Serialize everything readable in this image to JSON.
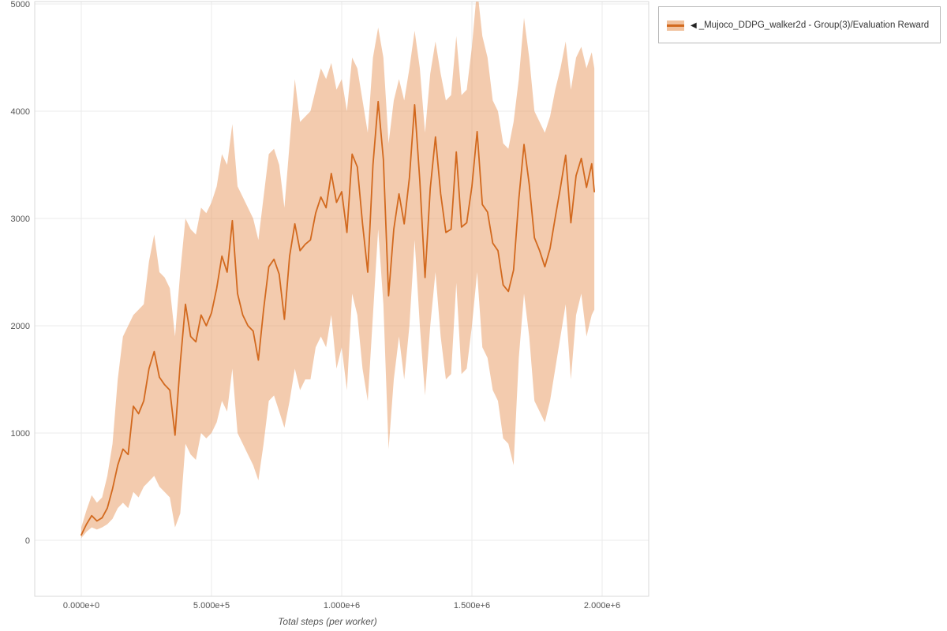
{
  "legend": {
    "arrow": "◀",
    "label": "_Mujoco_DDPG_walker2d - Group(3)/Evaluation Reward"
  },
  "chart_data": {
    "type": "line",
    "title": "",
    "xlabel": "Total steps (per worker)",
    "ylabel": "",
    "xlim": [
      0,
      2000000
    ],
    "ylim": [
      0,
      5000
    ],
    "grid": true,
    "legend_position": "top-right",
    "colors": {
      "line": "#d2691e",
      "band": "#e8975d",
      "band_light": "#f1c29e",
      "grid": "#ebebeb",
      "border": "#d9d9d9",
      "tick_text": "#555555"
    },
    "x_ticks": [
      {
        "value": 0,
        "label": "0.000e+0"
      },
      {
        "value": 500000,
        "label": "5.000e+5"
      },
      {
        "value": 1000000,
        "label": "1.000e+6"
      },
      {
        "value": 1500000,
        "label": "1.500e+6"
      },
      {
        "value": 2000000,
        "label": "2.000e+6"
      }
    ],
    "y_ticks": [
      0,
      1000,
      2000,
      3000,
      4000,
      5000
    ],
    "series": [
      {
        "name": "_Mujoco_DDPG_walker2d - Group(3)/Evaluation Reward",
        "x": [
          0,
          20000,
          40000,
          60000,
          80000,
          100000,
          120000,
          140000,
          160000,
          180000,
          200000,
          220000,
          240000,
          260000,
          280000,
          300000,
          320000,
          340000,
          360000,
          380000,
          400000,
          420000,
          440000,
          460000,
          480000,
          500000,
          520000,
          540000,
          560000,
          580000,
          600000,
          620000,
          640000,
          660000,
          680000,
          700000,
          720000,
          740000,
          760000,
          780000,
          800000,
          820000,
          840000,
          860000,
          880000,
          900000,
          920000,
          940000,
          960000,
          980000,
          1000000,
          1020000,
          1040000,
          1060000,
          1080000,
          1100000,
          1120000,
          1140000,
          1160000,
          1180000,
          1200000,
          1220000,
          1240000,
          1260000,
          1280000,
          1300000,
          1320000,
          1340000,
          1360000,
          1380000,
          1400000,
          1420000,
          1440000,
          1460000,
          1480000,
          1500000,
          1520000,
          1540000,
          1560000,
          1580000,
          1600000,
          1620000,
          1640000,
          1660000,
          1680000,
          1700000,
          1720000,
          1740000,
          1760000,
          1780000,
          1800000,
          1820000,
          1840000,
          1860000,
          1880000,
          1900000,
          1920000,
          1940000,
          1960000,
          1970000
        ],
        "mean": [
          50,
          150,
          230,
          180,
          210,
          300,
          480,
          700,
          850,
          800,
          1250,
          1180,
          1300,
          1600,
          1760,
          1520,
          1450,
          1400,
          980,
          1650,
          2200,
          1900,
          1850,
          2100,
          2000,
          2120,
          2350,
          2650,
          2500,
          2980,
          2300,
          2100,
          2000,
          1950,
          1680,
          2150,
          2550,
          2620,
          2480,
          2060,
          2650,
          2950,
          2700,
          2760,
          2800,
          3050,
          3200,
          3100,
          3420,
          3150,
          3250,
          2870,
          3600,
          3480,
          2950,
          2500,
          3500,
          4090,
          3550,
          2280,
          2900,
          3230,
          2950,
          3380,
          4060,
          3350,
          2450,
          3280,
          3760,
          3230,
          2870,
          2900,
          3620,
          2920,
          2960,
          3300,
          3810,
          3130,
          3060,
          2770,
          2700,
          2380,
          2320,
          2520,
          3180,
          3690,
          3320,
          2820,
          2700,
          2550,
          2720,
          3010,
          3290,
          3590,
          2960,
          3400,
          3560,
          3290,
          3510,
          3250
        ],
        "lower": [
          20,
          80,
          120,
          100,
          120,
          150,
          200,
          300,
          350,
          300,
          450,
          400,
          500,
          550,
          600,
          500,
          450,
          400,
          120,
          250,
          900,
          800,
          750,
          1000,
          950,
          1000,
          1100,
          1300,
          1200,
          1600,
          1000,
          900,
          800,
          700,
          560,
          900,
          1300,
          1350,
          1200,
          1050,
          1300,
          1600,
          1400,
          1500,
          1500,
          1800,
          1900,
          1800,
          2100,
          1600,
          1800,
          1400,
          2300,
          2100,
          1600,
          1300,
          2100,
          2900,
          2200,
          850,
          1500,
          1900,
          1500,
          2000,
          2800,
          2000,
          1350,
          2000,
          2500,
          1900,
          1500,
          1550,
          2400,
          1550,
          1600,
          2000,
          2500,
          1800,
          1700,
          1400,
          1300,
          950,
          900,
          700,
          1700,
          2300,
          1900,
          1300,
          1200,
          1100,
          1300,
          1600,
          1900,
          2200,
          1500,
          2100,
          2300,
          1900,
          2100,
          2150
        ],
        "upper": [
          120,
          280,
          420,
          350,
          400,
          600,
          900,
          1500,
          1900,
          2000,
          2100,
          2150,
          2200,
          2600,
          2850,
          2500,
          2450,
          2350,
          1900,
          2500,
          3000,
          2900,
          2850,
          3100,
          3050,
          3150,
          3300,
          3600,
          3500,
          3880,
          3300,
          3200,
          3100,
          3000,
          2800,
          3200,
          3600,
          3650,
          3500,
          3100,
          3700,
          4300,
          3900,
          3950,
          4000,
          4200,
          4400,
          4300,
          4450,
          4200,
          4300,
          4000,
          4500,
          4400,
          4100,
          3800,
          4500,
          4780,
          4500,
          3700,
          4100,
          4300,
          4100,
          4400,
          4750,
          4400,
          3800,
          4350,
          4650,
          4350,
          4100,
          4150,
          4700,
          4150,
          4200,
          4600,
          5150,
          4700,
          4500,
          4100,
          4000,
          3700,
          3650,
          3900,
          4300,
          4870,
          4500,
          4000,
          3900,
          3800,
          3950,
          4200,
          4400,
          4650,
          4200,
          4500,
          4600,
          4400,
          4550,
          4400
        ]
      }
    ]
  }
}
